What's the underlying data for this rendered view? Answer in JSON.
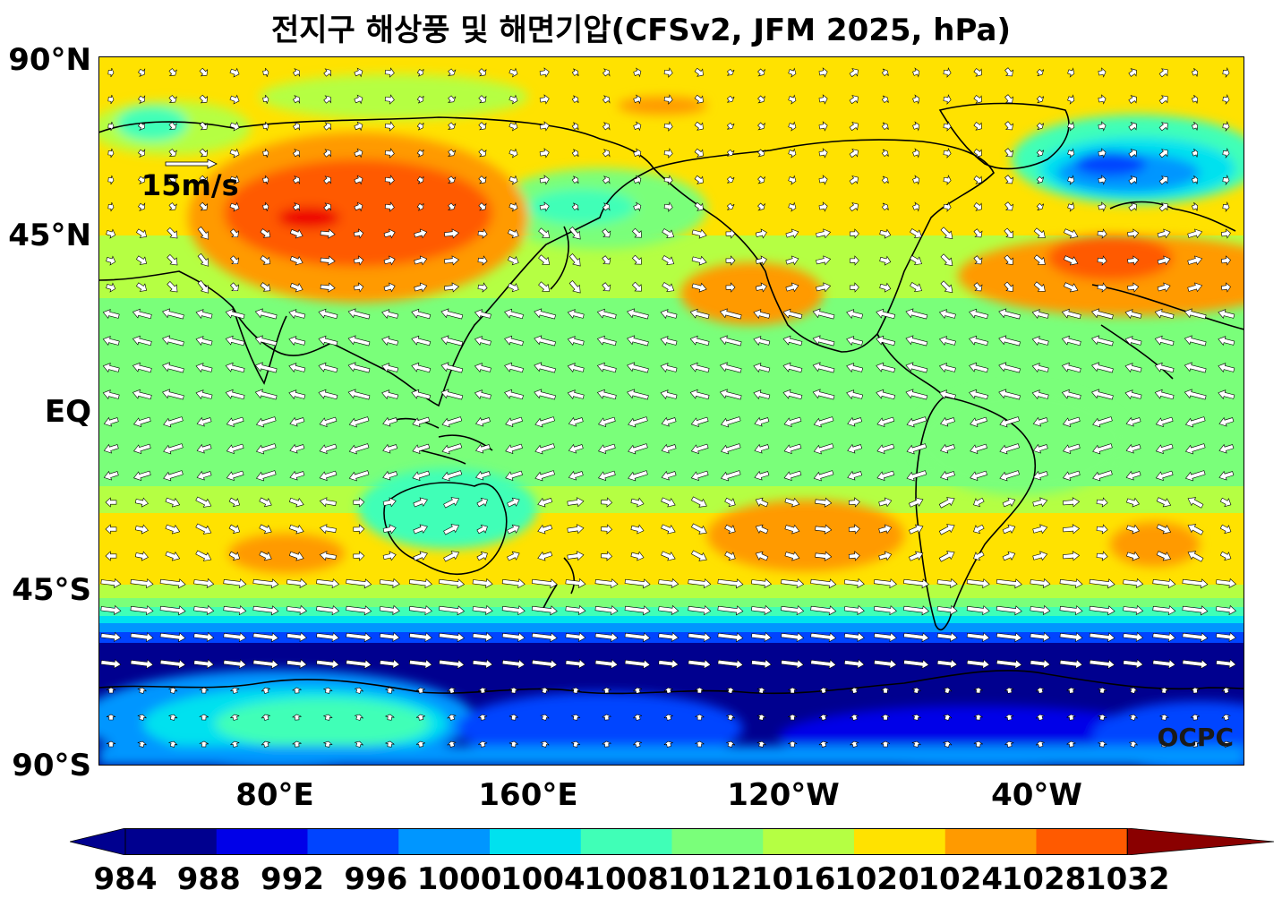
{
  "title": "전지구 해상풍 및 해면기압(CFSv2, JFM 2025, hPa)",
  "lat_labels": [
    "90°N",
    "45°N",
    "EQ",
    "45°S",
    "90°S"
  ],
  "lon_labels": [
    "80°E",
    "160°E",
    "120°W",
    "40°W"
  ],
  "reference_vector": {
    "label": "15m/s",
    "speed_ms": 15
  },
  "watermark": "OCPC",
  "colorbar": {
    "levels": [
      "984",
      "988",
      "992",
      "996",
      "1000",
      "1004",
      "1008",
      "1012",
      "1016",
      "1020",
      "1024",
      "1028",
      "1032"
    ],
    "colors": [
      "#00008f",
      "#0000e8",
      "#0044ff",
      "#0096ff",
      "#00e1ef",
      "#40ffb7",
      "#7aff7a",
      "#b5ff43",
      "#ffe200",
      "#ff9a00",
      "#ff5a00",
      "#ee0000",
      "#8a0000"
    ]
  },
  "colors": {
    "land_outline": "#000000",
    "arrow_fill": "#ffffff",
    "arrow_stroke": "#000000"
  }
}
